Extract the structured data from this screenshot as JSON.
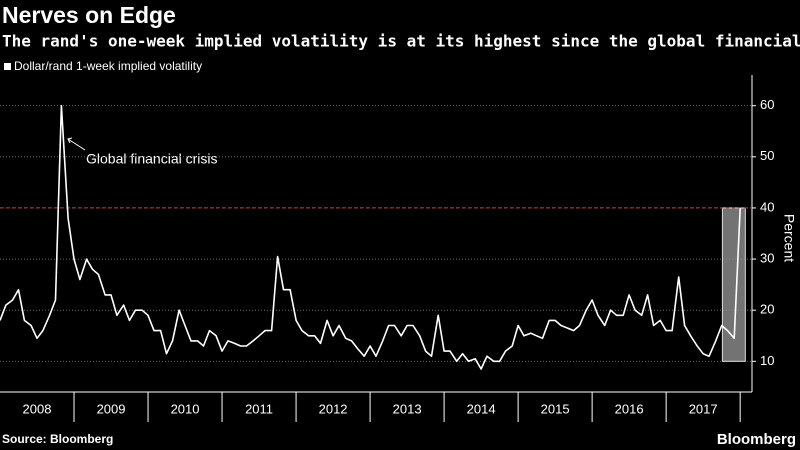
{
  "chart_data": {
    "type": "line",
    "title": "Nerves on Edge",
    "subtitle": "The rand's one-week implied volatility is at its highest since the global financial crisis",
    "source": "Source: Bloomberg",
    "brand": "Bloomberg",
    "y_label": "Percent",
    "annotation": "Global financial crisis",
    "x": [
      2008,
      2008.08,
      2008.17,
      2008.25,
      2008.33,
      2008.42,
      2008.5,
      2008.58,
      2008.67,
      2008.75,
      2008.83,
      2008.92,
      2009,
      2009.08,
      2009.17,
      2009.25,
      2009.33,
      2009.42,
      2009.5,
      2009.58,
      2009.67,
      2009.75,
      2009.83,
      2009.92,
      2010,
      2010.08,
      2010.17,
      2010.25,
      2010.33,
      2010.42,
      2010.5,
      2010.58,
      2010.67,
      2010.75,
      2010.83,
      2010.92,
      2011,
      2011.08,
      2011.17,
      2011.25,
      2011.33,
      2011.42,
      2011.5,
      2011.58,
      2011.67,
      2011.75,
      2011.83,
      2011.92,
      2012,
      2012.08,
      2012.17,
      2012.25,
      2012.33,
      2012.42,
      2012.5,
      2012.58,
      2012.67,
      2012.75,
      2012.83,
      2012.92,
      2013,
      2013.08,
      2013.17,
      2013.25,
      2013.33,
      2013.42,
      2013.5,
      2013.58,
      2013.67,
      2013.75,
      2013.83,
      2013.92,
      2014,
      2014.08,
      2014.17,
      2014.25,
      2014.33,
      2014.42,
      2014.5,
      2014.58,
      2014.67,
      2014.75,
      2014.83,
      2014.92,
      2015,
      2015.08,
      2015.17,
      2015.25,
      2015.33,
      2015.42,
      2015.5,
      2015.58,
      2015.67,
      2015.75,
      2015.83,
      2015.92,
      2016,
      2016.08,
      2016.17,
      2016.25,
      2016.33,
      2016.42,
      2016.5,
      2016.58,
      2016.67,
      2016.75,
      2016.83,
      2016.92,
      2017,
      2017.08,
      2017.17,
      2017.25,
      2017.33,
      2017.42,
      2017.5,
      2017.58,
      2017.67,
      2017.75,
      2017.83,
      2017.92,
      2018
    ],
    "series": [
      {
        "name": "Dollar/rand 1-week implied volatility",
        "color": "#ffffff",
        "values": [
          18,
          21,
          22,
          24,
          18,
          17,
          14.5,
          16,
          19,
          22,
          60,
          38,
          30,
          26,
          30,
          28,
          27,
          23,
          23,
          19,
          21,
          18,
          20,
          20,
          19,
          16,
          16,
          11.5,
          14,
          20,
          17,
          14,
          14,
          13,
          16,
          15,
          12,
          14,
          13.5,
          13,
          13,
          14,
          15,
          16,
          16,
          30.5,
          24,
          24,
          18,
          16,
          15,
          15,
          13.5,
          18,
          15,
          17,
          14.5,
          14,
          12.5,
          11,
          13,
          11,
          14,
          17,
          17,
          15,
          17,
          17,
          15,
          12,
          11,
          19,
          12,
          12,
          10,
          11.5,
          10,
          10.5,
          8.5,
          11,
          10,
          10,
          12,
          13,
          17,
          15,
          15.5,
          15,
          14.5,
          18,
          18,
          17,
          16.5,
          16,
          17,
          20,
          22,
          19,
          17,
          20,
          19,
          19,
          23,
          20,
          19,
          23,
          17,
          18,
          16,
          16,
          26.5,
          17,
          15,
          13,
          11.5,
          11,
          14,
          17,
          16,
          14.5,
          40
        ]
      }
    ],
    "xlim": [
      2008,
      2018.16
    ],
    "xticks": [
      {
        "value": 2008.5,
        "label": "2008"
      },
      {
        "value": 2009.5,
        "label": "2009"
      },
      {
        "value": 2010.5,
        "label": "2010"
      },
      {
        "value": 2011.5,
        "label": "2011"
      },
      {
        "value": 2012.5,
        "label": "2012"
      },
      {
        "value": 2013.5,
        "label": "2013"
      },
      {
        "value": 2014.5,
        "label": "2014"
      },
      {
        "value": 2015.5,
        "label": "2015"
      },
      {
        "value": 2016.5,
        "label": "2016"
      },
      {
        "value": 2017.5,
        "label": "2017"
      }
    ],
    "ylim": [
      4,
      66
    ],
    "yticks": [
      10,
      20,
      30,
      40,
      50,
      60
    ],
    "grid": true,
    "reference_line": {
      "value": 40,
      "color": "#e03030"
    },
    "highlight": {
      "xlim": [
        2017.76,
        2018.07
      ],
      "ylim": [
        10,
        40
      ]
    }
  }
}
